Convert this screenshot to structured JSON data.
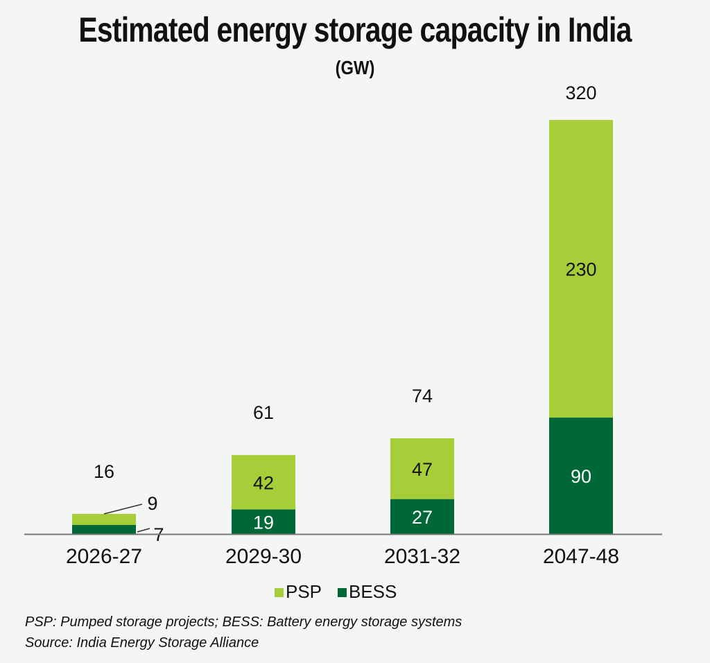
{
  "title": "Estimated energy storage capacity in India",
  "subtitle": "(GW)",
  "chart_data": {
    "type": "bar",
    "stacked": true,
    "categories": [
      "2026-27",
      "2029-30",
      "2031-32",
      "2047-48"
    ],
    "series": [
      {
        "name": "BESS",
        "values": [
          7,
          19,
          27,
          90
        ],
        "color": "#006837"
      },
      {
        "name": "PSP",
        "values": [
          9,
          42,
          47,
          230
        ],
        "color": "#a6ce39"
      }
    ],
    "totals": [
      16,
      61,
      74,
      320
    ],
    "ylim": [
      0,
      320
    ],
    "grid": false,
    "legend": "bottom-center"
  },
  "footnote": "PSP: Pumped storage projects; BESS: Battery energy storage systems",
  "source": "Source: India Energy Storage Alliance"
}
